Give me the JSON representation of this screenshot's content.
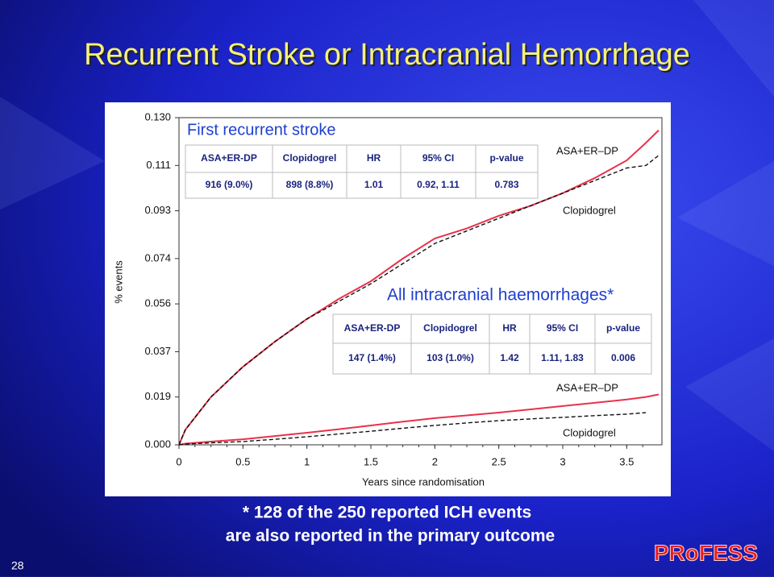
{
  "slide": {
    "title": "Recurrent Stroke or Intracranial Hemorrhage",
    "footnote": [
      "* 128 of the 250 reported ICH events",
      "are also reported in the primary outcome"
    ],
    "number": "28",
    "logo": "PRoFESS"
  },
  "chart_data": {
    "type": "line",
    "xlabel": "Years since randomisation",
    "ylabel": "% events",
    "xlim": [
      0,
      3.75
    ],
    "ylim": [
      0,
      0.13
    ],
    "xticks": [
      0,
      0.5,
      1,
      1.5,
      2,
      2.5,
      3,
      3.5
    ],
    "yticks": [
      {
        "value": 0,
        "label": "0.000"
      },
      {
        "value": 0.019,
        "label": "0.019"
      },
      {
        "value": 0.037,
        "label": "0.037"
      },
      {
        "value": 0.056,
        "label": "0.056"
      },
      {
        "value": 0.074,
        "label": "0.074"
      },
      {
        "value": 0.093,
        "label": "0.093"
      },
      {
        "value": 0.111,
        "label": "0.111"
      },
      {
        "value": 0.13,
        "label": "0.130"
      }
    ],
    "x": [
      0,
      0.05,
      0.25,
      0.5,
      0.75,
      1,
      1.25,
      1.5,
      1.75,
      2,
      2.25,
      2.5,
      2.75,
      3,
      3.25,
      3.5,
      3.65,
      3.75
    ],
    "series": [
      {
        "name": "ASA+ER–DP",
        "color": "#e8324a",
        "dashed": false,
        "values": [
          0,
          0.006,
          0.019,
          0.031,
          0.041,
          0.05,
          0.058,
          0.065,
          0.074,
          0.082,
          0.086,
          0.091,
          0.095,
          0.1,
          0.106,
          0.113,
          0.12,
          0.125
        ]
      },
      {
        "name": "Clopidogrel",
        "color": "#111111",
        "dashed": true,
        "values": [
          0,
          0.006,
          0.019,
          0.031,
          0.041,
          0.05,
          0.057,
          0.064,
          0.072,
          0.08,
          0.085,
          0.09,
          0.095,
          0.1,
          0.105,
          0.11,
          0.111,
          0.115
        ]
      },
      {
        "name": "ASA+ER–DP",
        "color": "#e8324a",
        "dashed": false,
        "values": [
          0,
          0.0005,
          0.0013,
          0.0022,
          0.0035,
          0.0048,
          0.0062,
          0.0077,
          0.0092,
          0.0106,
          0.0117,
          0.0128,
          0.0141,
          0.0154,
          0.0167,
          0.018,
          0.019,
          0.02
        ]
      },
      {
        "name": "Clopidogrel",
        "color": "#111111",
        "dashed": true,
        "values": [
          0,
          0.0003,
          0.0008,
          0.0013,
          0.0022,
          0.0032,
          0.0043,
          0.0054,
          0.0066,
          0.0077,
          0.0087,
          0.0096,
          0.0103,
          0.0109,
          0.0116,
          0.0122,
          0.0128,
          null
        ]
      }
    ],
    "tables": [
      {
        "title": "First recurrent stroke",
        "header": [
          "ASA+ER-DP",
          "Clopidogrel",
          "HR",
          "95% CI",
          "p-value"
        ],
        "row": [
          "916 (9.0%)",
          "898 (8.8%)",
          "1.01",
          "0.92, 1.11",
          "0.783"
        ]
      },
      {
        "title": "All intracranial haemorrhages*",
        "header": [
          "ASA+ER-DP",
          "Clopidogrel",
          "HR",
          "95% CI",
          "p-value"
        ],
        "row": [
          "147 (1.4%)",
          "103 (1.0%)",
          "1.42",
          "1.11, 1.83",
          "0.006"
        ]
      }
    ]
  }
}
